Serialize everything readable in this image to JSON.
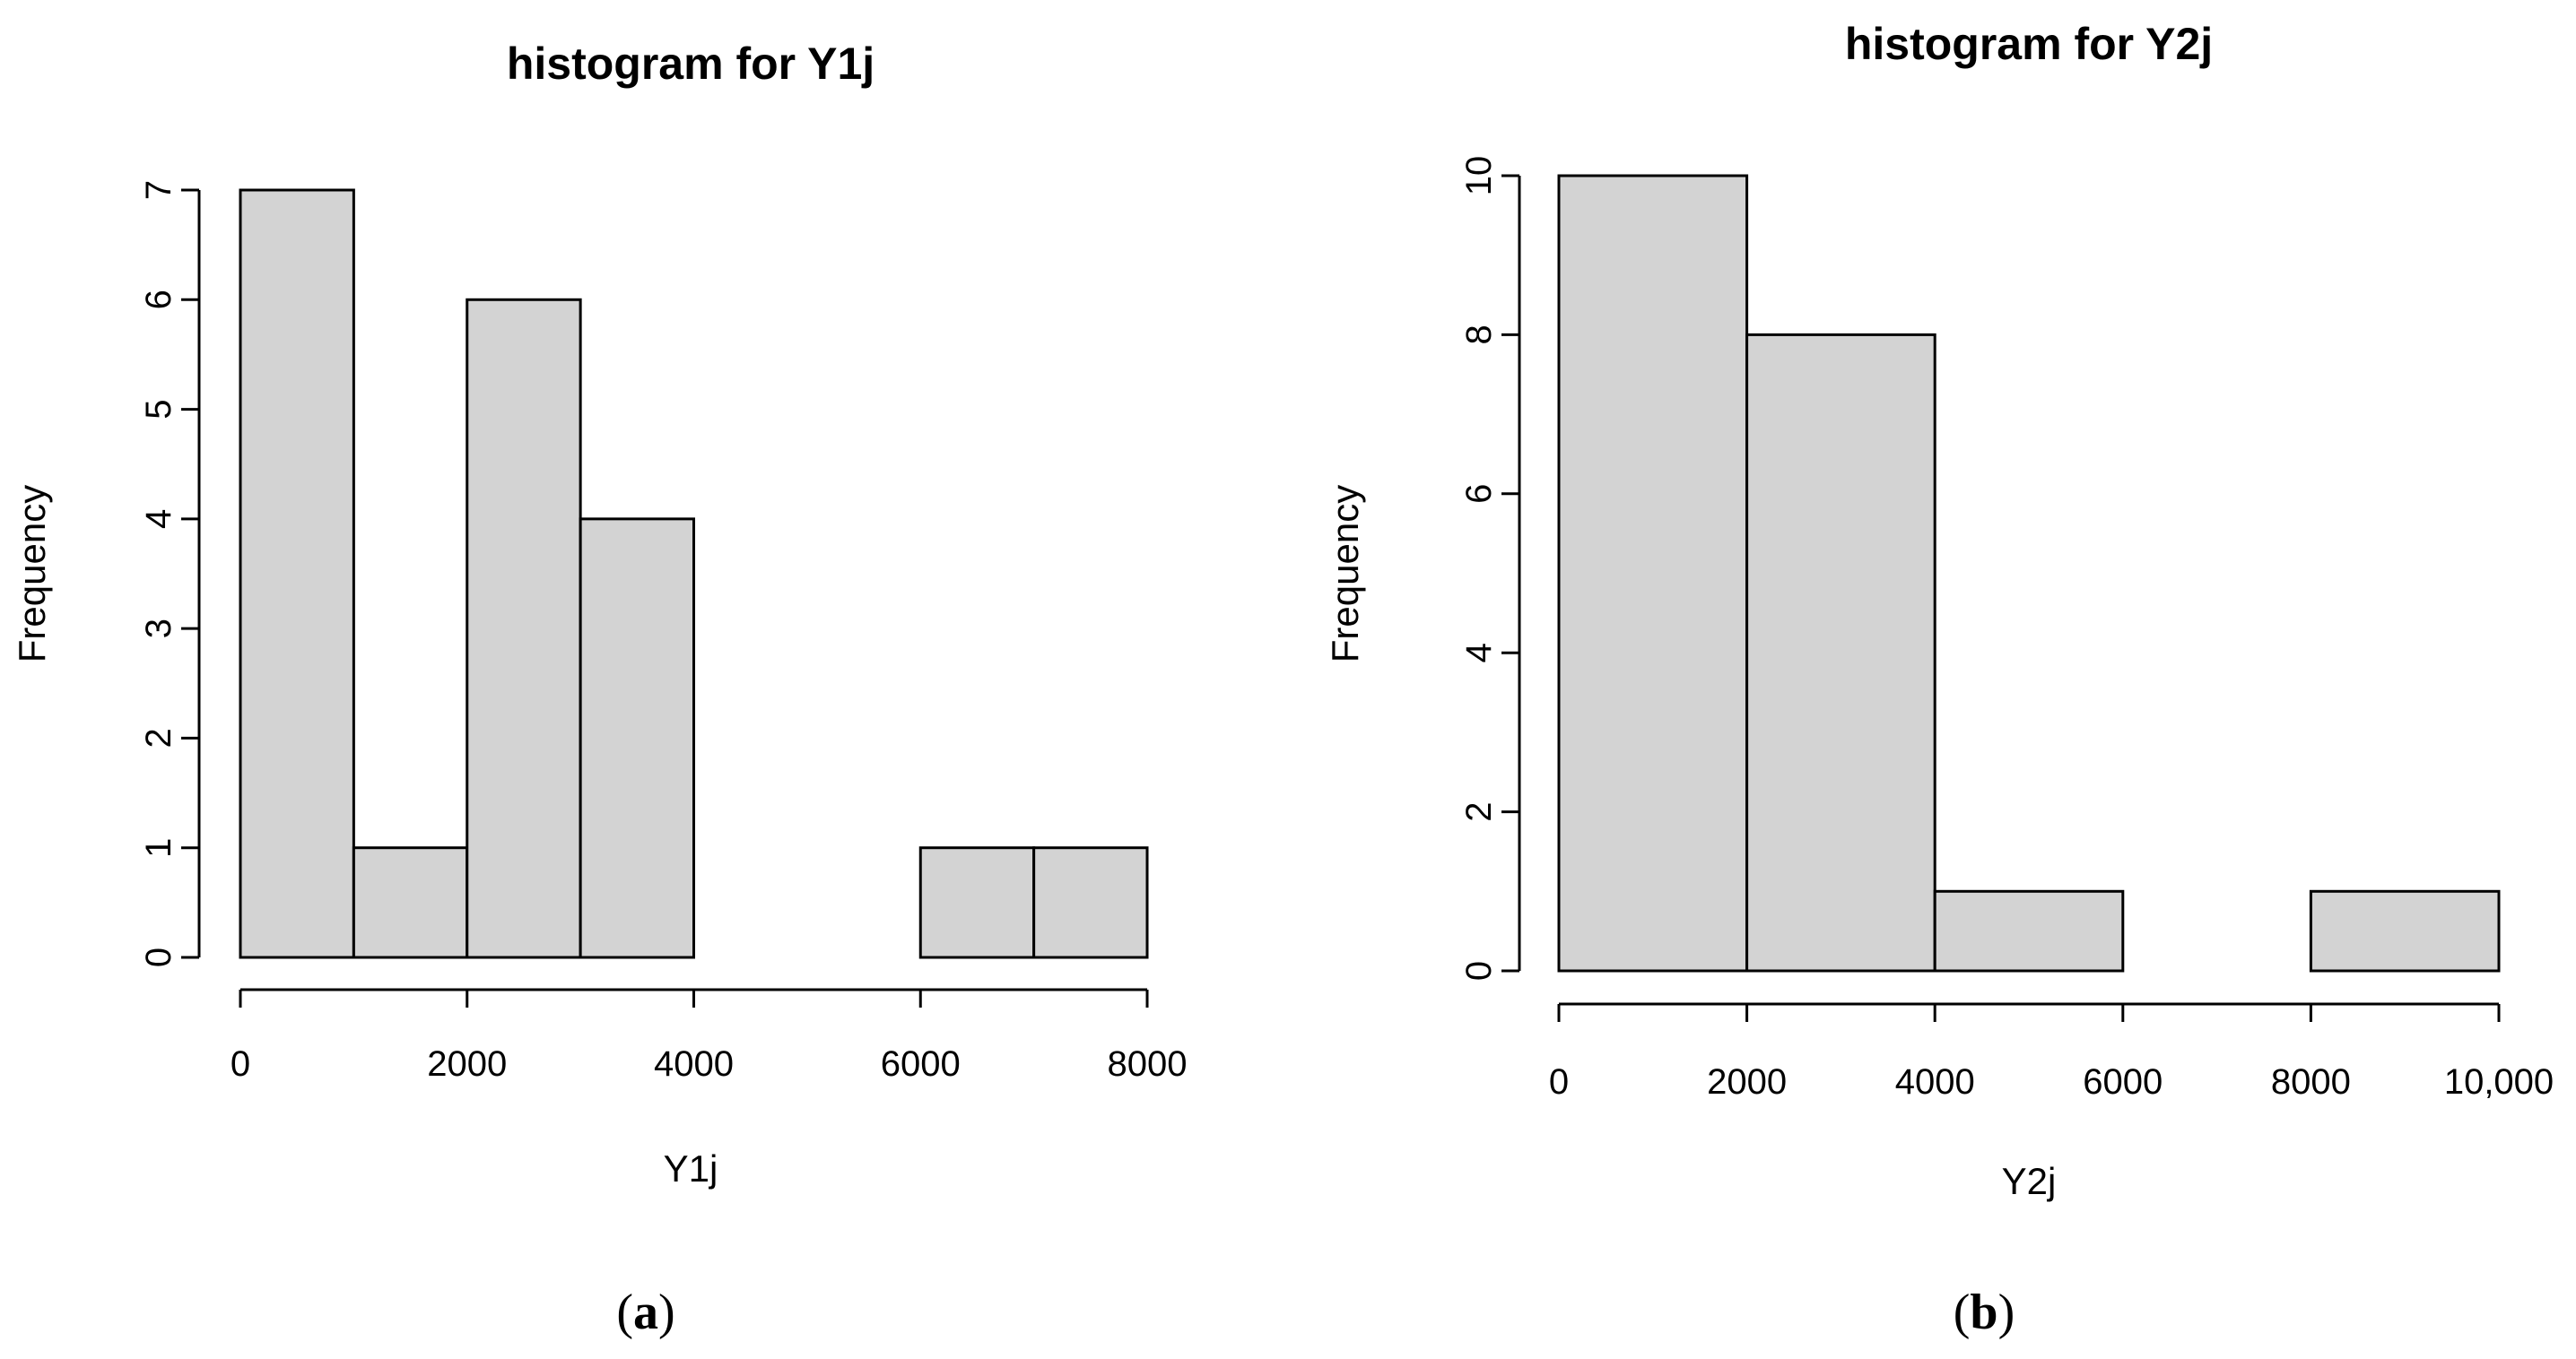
{
  "chart_data": [
    {
      "type": "bar",
      "title": "histogram for Y1j",
      "xlabel": "Y1j",
      "ylabel": "Frequency",
      "bins": [
        [
          0,
          1000
        ],
        [
          1000,
          2000
        ],
        [
          2000,
          3000
        ],
        [
          3000,
          4000
        ],
        [
          4000,
          5000
        ],
        [
          5000,
          6000
        ],
        [
          6000,
          7000
        ],
        [
          7000,
          8000
        ]
      ],
      "values": [
        7,
        1,
        6,
        4,
        0,
        0,
        1,
        1
      ],
      "xlim": [
        0,
        8000
      ],
      "ylim": [
        0,
        7
      ],
      "xticks": [
        0,
        2000,
        4000,
        6000,
        8000
      ],
      "xtick_labels": [
        "0",
        "2000",
        "4000",
        "6000",
        "8000"
      ],
      "yticks": [
        0,
        1,
        2,
        3,
        4,
        5,
        6,
        7
      ],
      "ytick_labels": [
        "0",
        "1",
        "2",
        "3",
        "4",
        "5",
        "6",
        "7"
      ],
      "panel_label": {
        "open": "(",
        "letter": "a",
        "close": ")"
      }
    },
    {
      "type": "bar",
      "title": "histogram for Y2j",
      "xlabel": "Y2j",
      "ylabel": "Frequency",
      "bins": [
        [
          0,
          2000
        ],
        [
          2000,
          4000
        ],
        [
          4000,
          6000
        ],
        [
          6000,
          8000
        ],
        [
          8000,
          10000
        ]
      ],
      "values": [
        10,
        8,
        1,
        0,
        1
      ],
      "xlim": [
        0,
        10000
      ],
      "ylim": [
        0,
        10
      ],
      "xticks": [
        0,
        2000,
        4000,
        6000,
        8000,
        10000
      ],
      "xtick_labels": [
        "0",
        "2000",
        "4000",
        "6000",
        "8000",
        "10,000"
      ],
      "yticks": [
        0,
        2,
        4,
        6,
        8,
        10
      ],
      "ytick_labels": [
        "0",
        "2",
        "4",
        "6",
        "8",
        "10"
      ],
      "panel_label": {
        "open": "(",
        "letter": "b",
        "close": ")"
      }
    }
  ]
}
